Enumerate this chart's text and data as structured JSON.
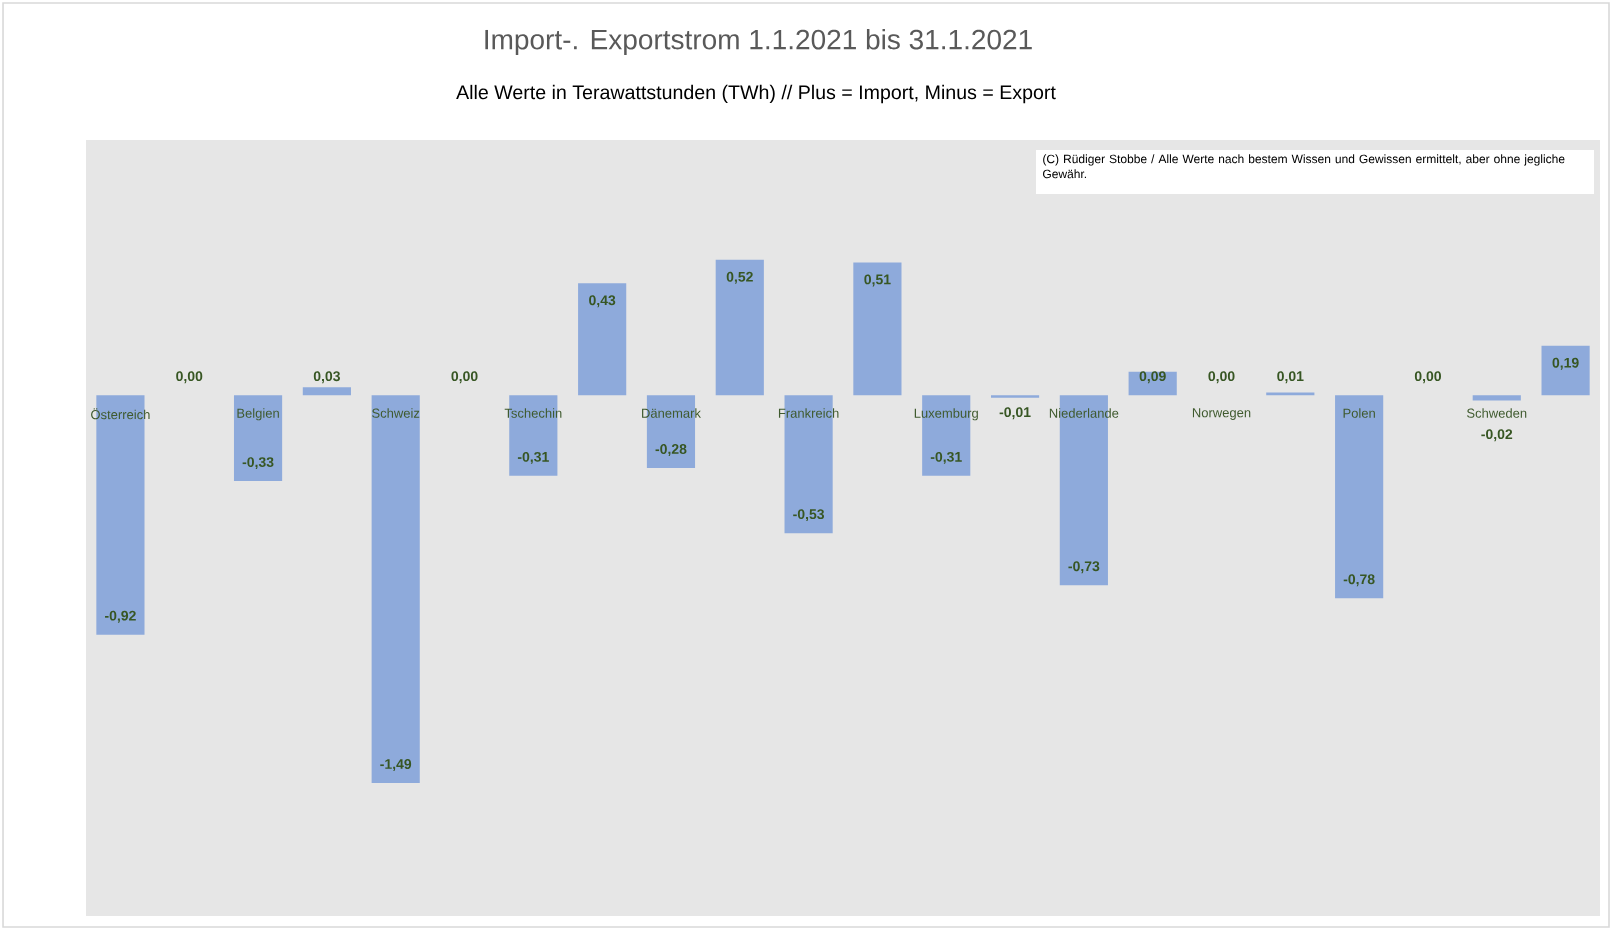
{
  "chart_data": {
    "type": "bar",
    "title": "Import-. Exportstrom 1.1.2021 bis 31.1.2021",
    "subtitle": "Alle Werte in Terawattstunden (TWh) // Plus = Import, Minus = Export",
    "annotations": [
      "(C) Rüdiger Stobbe / Alle Werte nach bestem Wissen und Gewissen ermittelt, aber ohne jegliche Gewähr."
    ],
    "categories": [
      "Österreich",
      null,
      "Belgien",
      null,
      "Schweiz",
      null,
      "Tschechin",
      null,
      "Dänemark",
      null,
      "Frankreich",
      null,
      "Luxemburg",
      null,
      "Niederlande",
      null,
      "Norwegen",
      null,
      "Polen",
      null,
      "Schweden",
      null
    ],
    "values": [
      -0.92,
      0.0,
      -0.33,
      0.03,
      -1.49,
      0.0,
      -0.31,
      0.43,
      -0.28,
      0.52,
      -0.53,
      0.51,
      -0.31,
      -0.01,
      -0.73,
      0.09,
      0.0,
      0.01,
      -0.78,
      0.0,
      -0.02,
      0.19
    ],
    "value_labels": [
      "-0,92",
      "0,00",
      "-0,33",
      "0,03",
      "-1,49",
      "0,00",
      "-0,31",
      "0,43",
      "-0,28",
      "0,52",
      "-0,53",
      "0,51",
      "-0,31",
      "-0,01",
      "-0,73",
      "0,09",
      "0,00",
      "0,01",
      "-0,78",
      "0,00",
      "-0,02",
      "0,19"
    ],
    "color": "#8eaadb"
  }
}
